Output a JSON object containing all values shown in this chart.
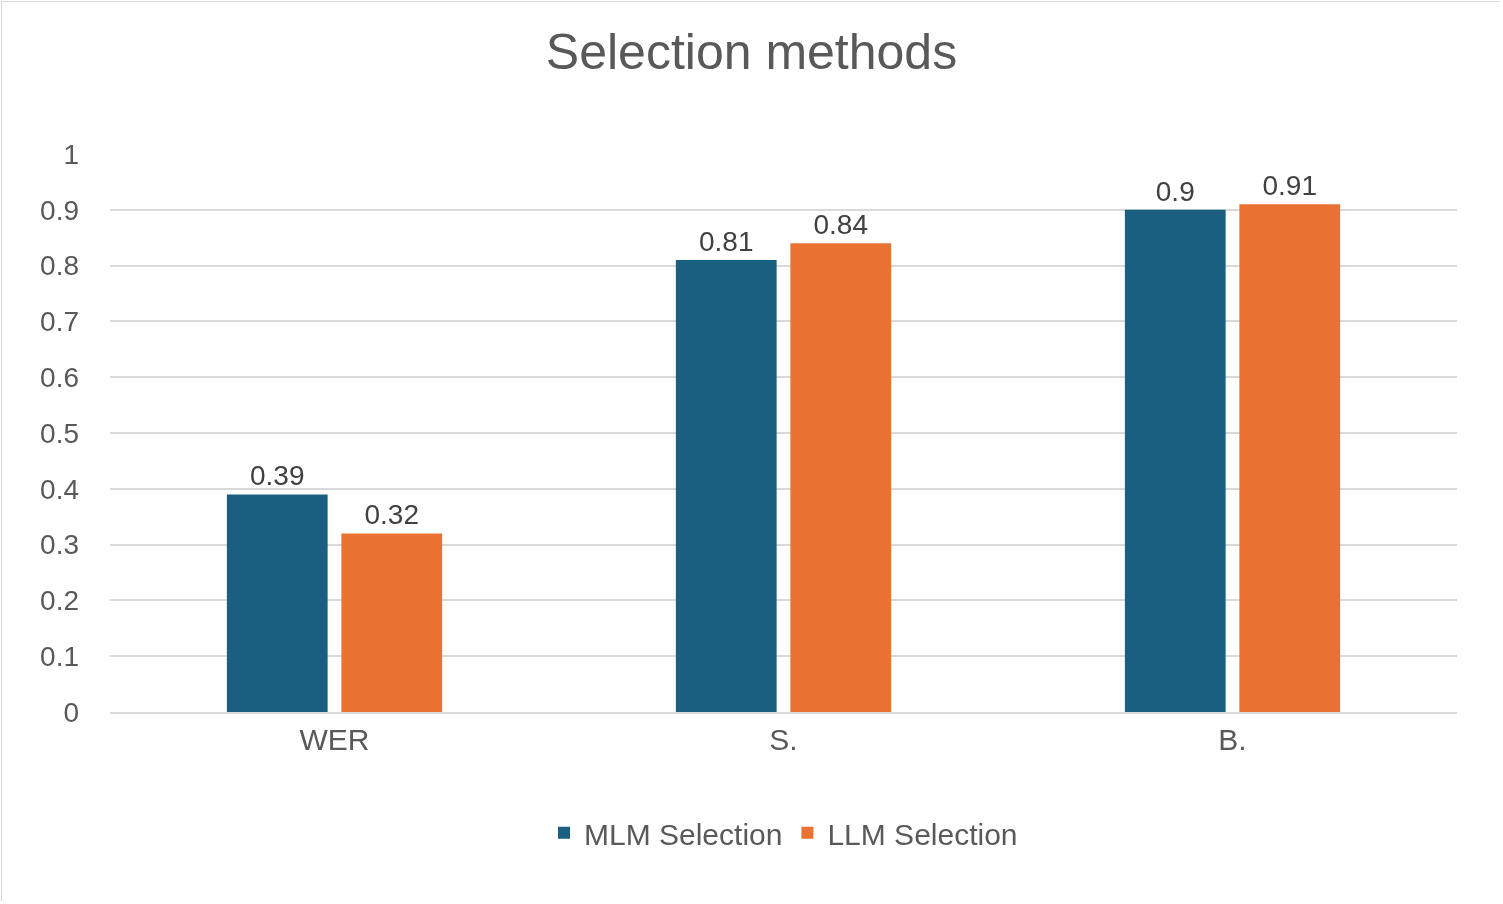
{
  "chart_data": {
    "type": "bar",
    "title": "Selection methods",
    "categories": [
      "WER",
      "S.",
      "B."
    ],
    "series": [
      {
        "name": "MLM Selection",
        "color": "#1a5f80",
        "values": [
          0.39,
          0.81,
          0.9
        ]
      },
      {
        "name": "LLM Selection",
        "color": "#e97132",
        "values": [
          0.32,
          0.84,
          0.91
        ]
      }
    ],
    "ylim": [
      0,
      1
    ],
    "yticks": [
      0,
      0.1,
      0.2,
      0.3,
      0.4,
      0.5,
      0.6,
      0.7,
      0.8,
      0.9,
      1
    ],
    "grid": "y",
    "legend": "bottom",
    "data_labels": true
  }
}
